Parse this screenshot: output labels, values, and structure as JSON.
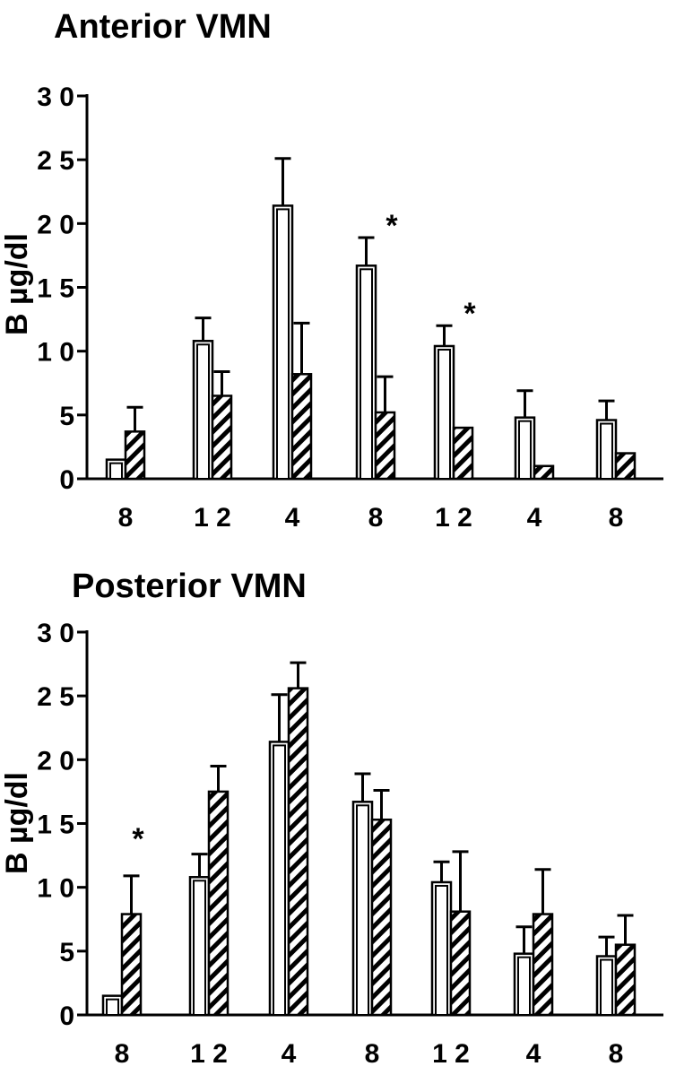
{
  "chart_data": [
    {
      "type": "bar",
      "title": "Anterior  VMN",
      "ylabel": "B µg/dl",
      "ylim": [
        0,
        30
      ],
      "yticks": [
        "0",
        "5",
        "1 0",
        "1 5",
        "2 0",
        "2 5",
        "3 0"
      ],
      "categories": [
        "8",
        "1 2",
        "4",
        "8",
        "1 2",
        "4",
        "8"
      ],
      "series": [
        {
          "pattern": "open",
          "values": [
            1.5,
            10.8,
            21.4,
            16.7,
            10.4,
            4.8,
            4.6
          ],
          "errors": [
            0,
            1.8,
            3.7,
            2.2,
            1.6,
            2.1,
            1.5
          ]
        },
        {
          "pattern": "hatched",
          "values": [
            3.7,
            6.5,
            8.2,
            5.2,
            4.0,
            1.0,
            2.0
          ],
          "errors": [
            1.9,
            1.9,
            4.0,
            2.8,
            0,
            0,
            0
          ]
        }
      ],
      "annotations": [
        {
          "text": "*",
          "category_index": 3
        },
        {
          "text": "*",
          "category_index": 4
        }
      ]
    },
    {
      "type": "bar",
      "title": "Posterior  VMN",
      "ylabel": "B µg/dl",
      "ylim": [
        0,
        30
      ],
      "yticks": [
        "0",
        "5",
        "1 0",
        "1 5",
        "2 0",
        "2 5",
        "3 0"
      ],
      "categories": [
        "8",
        "1 2",
        "4",
        "8",
        "1 2",
        "4",
        "8"
      ],
      "series": [
        {
          "pattern": "open",
          "values": [
            1.5,
            10.8,
            21.4,
            16.7,
            10.4,
            4.8,
            4.6
          ],
          "errors": [
            0,
            1.8,
            3.7,
            2.2,
            1.6,
            2.1,
            1.5
          ]
        },
        {
          "pattern": "hatched",
          "values": [
            7.9,
            17.5,
            25.6,
            15.3,
            8.1,
            7.9,
            5.5
          ],
          "errors": [
            3.0,
            2.0,
            2.0,
            2.3,
            4.7,
            3.5,
            2.3
          ]
        }
      ],
      "annotations": [
        {
          "text": "*",
          "category_index": 0
        }
      ]
    }
  ]
}
